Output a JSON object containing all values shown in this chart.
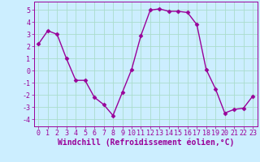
{
  "x": [
    0,
    1,
    2,
    3,
    4,
    5,
    6,
    7,
    8,
    9,
    10,
    11,
    12,
    13,
    14,
    15,
    16,
    17,
    18,
    19,
    20,
    21,
    22,
    23
  ],
  "y": [
    2.2,
    3.3,
    3.0,
    1.0,
    -0.8,
    -0.8,
    -2.2,
    -2.8,
    -3.7,
    -1.8,
    0.1,
    2.9,
    5.0,
    5.1,
    4.9,
    4.9,
    4.8,
    3.8,
    0.1,
    -1.5,
    -3.5,
    -3.2,
    -3.1,
    -2.1
  ],
  "line_color": "#990099",
  "marker": "D",
  "marker_size": 2.5,
  "line_width": 1.0,
  "bg_color": "#cceeff",
  "grid_color": "#aaddcc",
  "xlabel": "Windchill (Refroidissement éolien,°C)",
  "xlabel_fontsize": 7.0,
  "tick_fontsize": 6.0,
  "ylim": [
    -4.6,
    5.7
  ],
  "xlim": [
    -0.5,
    23.5
  ],
  "yticks": [
    -4,
    -3,
    -2,
    -1,
    0,
    1,
    2,
    3,
    4,
    5
  ],
  "xticks": [
    0,
    1,
    2,
    3,
    4,
    5,
    6,
    7,
    8,
    9,
    10,
    11,
    12,
    13,
    14,
    15,
    16,
    17,
    18,
    19,
    20,
    21,
    22,
    23
  ]
}
